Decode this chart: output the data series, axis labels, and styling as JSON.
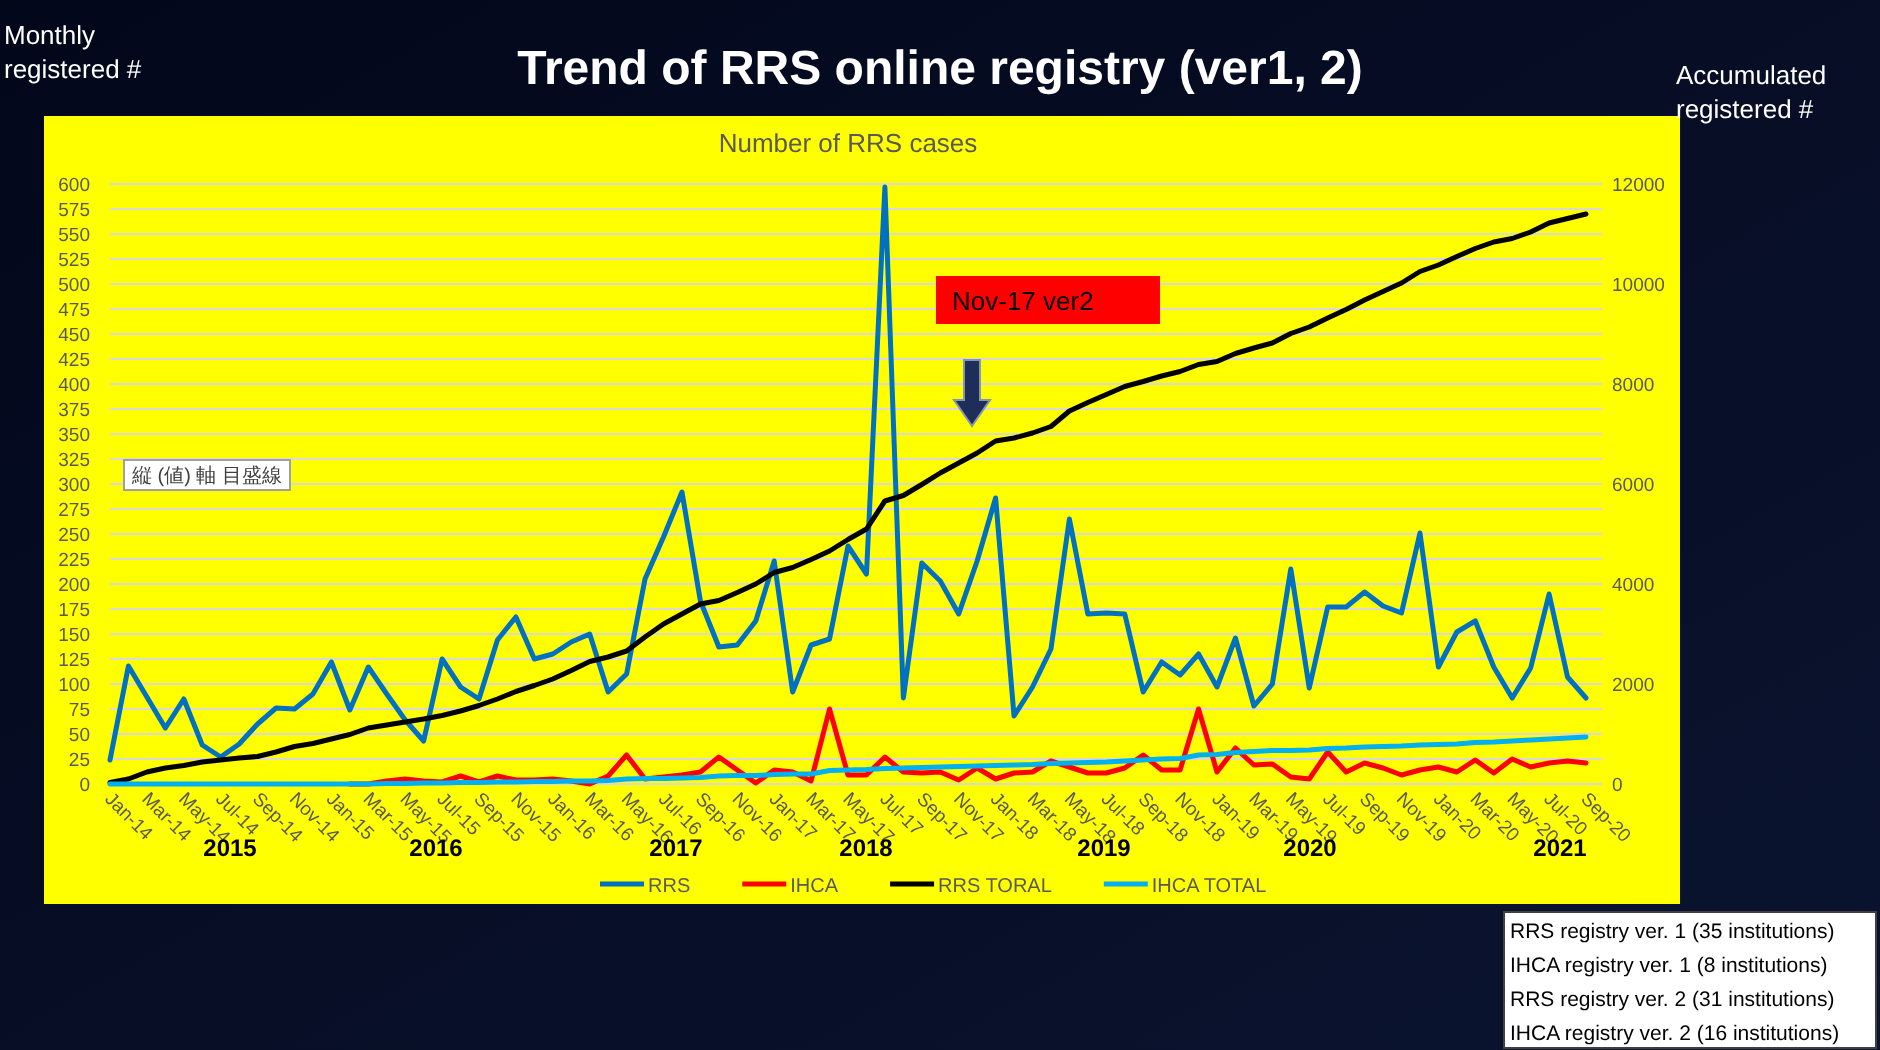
{
  "chart_data": {
    "type": "line",
    "title": "Trend of RRS online registry  (ver1, 2)",
    "subtitle": "Number of RRS cases",
    "ylabel": "Monthly registered #",
    "y2label": "Accumulated registered #",
    "categories": [
      "Jan-14",
      null,
      "Mar-14",
      null,
      "May-14",
      null,
      "Jul-14",
      null,
      "Sep-14",
      null,
      "Nov-14",
      null,
      "Jan-15",
      null,
      "Mar-15",
      null,
      "May-15",
      null,
      "Jul-15",
      null,
      "Sep-15",
      null,
      "Nov-15",
      null,
      "Jan-16",
      null,
      "Mar-16",
      null,
      "May-16",
      null,
      "Jul-16",
      null,
      "Sep-16",
      null,
      "Nov-16",
      null,
      "Jan-17",
      null,
      "Mar-17",
      null,
      "May-17",
      null,
      "Jul-17",
      null,
      "Sep-17",
      null,
      "Nov-17",
      null,
      "Jan-18",
      null,
      "Mar-18",
      null,
      "May-18",
      null,
      "Jul-18",
      null,
      "Sep-18",
      null,
      "Nov-18",
      null,
      "Jan-19",
      null,
      "Mar-19",
      null,
      "May-19",
      null,
      "Jul-19",
      null,
      "Sep-19",
      null,
      "Nov-19",
      null,
      "Jan-20",
      null,
      "Mar-20",
      null,
      "May-20",
      null,
      "Jul-20",
      null,
      "Sep-20"
    ],
    "series": [
      {
        "name": "RRS",
        "color": "#0070c0",
        "values": [
          24,
          118,
          87,
          56,
          85,
          39,
          27,
          40,
          60,
          76,
          75,
          90,
          122,
          74,
          117,
          90,
          64,
          43,
          125,
          97,
          85,
          144,
          167,
          125,
          130,
          142,
          150,
          92,
          110,
          205,
          247,
          292,
          183,
          137,
          139,
          163,
          223,
          92,
          139,
          145,
          238,
          210,
          597,
          86,
          221,
          203,
          170,
          223,
          286,
          68,
          97,
          135,
          265,
          170,
          171,
          170,
          92,
          122,
          109,
          130,
          97,
          146,
          78,
          100,
          215,
          96,
          177,
          177,
          192,
          178,
          171,
          251,
          117,
          152,
          163,
          117,
          86,
          116,
          190,
          107,
          86
        ]
      },
      {
        "name": "IHCA",
        "color": "#ff0000",
        "values": [
          null,
          null,
          null,
          null,
          null,
          null,
          null,
          null,
          null,
          null,
          null,
          null,
          null,
          0,
          0,
          3,
          5,
          3,
          2,
          8,
          2,
          8,
          4,
          4,
          5,
          3,
          0,
          8,
          29,
          5,
          7,
          9,
          12,
          27,
          14,
          1,
          14,
          12,
          3,
          75,
          9,
          9,
          27,
          12,
          11,
          12,
          4,
          16,
          5,
          11,
          12,
          23,
          17,
          11,
          11,
          16,
          29,
          14,
          14,
          75,
          12,
          36,
          19,
          20,
          7,
          5,
          32,
          12,
          21,
          16,
          9,
          14,
          17,
          12,
          24,
          11,
          25,
          17,
          21,
          23,
          21
        ]
      },
      {
        "name": "RRS TORAL",
        "color": "#000000",
        "axis": "y2",
        "values": [
          30,
          100,
          240,
          320,
          370,
          440,
          480,
          520,
          550,
          640,
          750,
          810,
          900,
          990,
          1120,
          1180,
          1240,
          1300,
          1370,
          1460,
          1570,
          1700,
          1850,
          1970,
          2100,
          2270,
          2450,
          2540,
          2660,
          2940,
          3200,
          3400,
          3600,
          3670,
          3830,
          4000,
          4230,
          4330,
          4490,
          4660,
          4890,
          5100,
          5660,
          5770,
          5990,
          6220,
          6420,
          6620,
          6860,
          6920,
          7020,
          7150,
          7460,
          7630,
          7790,
          7950,
          8050,
          8160,
          8250,
          8390,
          8450,
          8610,
          8720,
          8820,
          9010,
          9140,
          9320,
          9490,
          9680,
          9850,
          10020,
          10250,
          10380,
          10550,
          10710,
          10840,
          10910,
          11040,
          11220,
          11310,
          11400
        ]
      },
      {
        "name": "IHCA TOTAL",
        "color": "#00b0f0",
        "axis": "y2",
        "values": [
          0,
          0,
          0,
          0,
          0,
          0,
          0,
          0,
          0,
          0,
          0,
          0,
          0,
          0,
          0,
          10,
          10,
          20,
          20,
          30,
          30,
          40,
          40,
          50,
          50,
          60,
          60,
          70,
          100,
          110,
          110,
          120,
          130,
          160,
          170,
          170,
          190,
          200,
          200,
          270,
          280,
          290,
          310,
          320,
          330,
          340,
          350,
          360,
          370,
          380,
          390,
          410,
          420,
          430,
          440,
          460,
          480,
          500,
          510,
          580,
          590,
          630,
          650,
          670,
          670,
          680,
          710,
          720,
          740,
          750,
          760,
          780,
          790,
          800,
          830,
          840,
          860,
          880,
          900,
          920,
          940
        ]
      }
    ],
    "ylim": [
      0,
      600
    ],
    "yticks": [
      0,
      25,
      50,
      75,
      100,
      125,
      150,
      175,
      200,
      225,
      250,
      275,
      300,
      325,
      350,
      375,
      400,
      425,
      450,
      475,
      500,
      525,
      550,
      575,
      600
    ],
    "y2lim": [
      0,
      12000
    ],
    "y2ticks": [
      0,
      2000,
      4000,
      6000,
      8000,
      10000,
      12000
    ],
    "grid": "y",
    "legend": "bottom",
    "annotations": [
      "縦 (値) 軸 目盛線",
      "2015",
      "2016",
      "2017",
      "2018",
      "2019",
      "2020",
      "2021",
      "Nov-17 ver2",
      "RRS registry ver. 1 (35 institutions)",
      "IHCA registry ver. 1 (8 institutions)",
      "RRS registry ver. 2 (31 institutions)",
      "IHCA registry ver. 2 (16 institutions)"
    ]
  }
}
